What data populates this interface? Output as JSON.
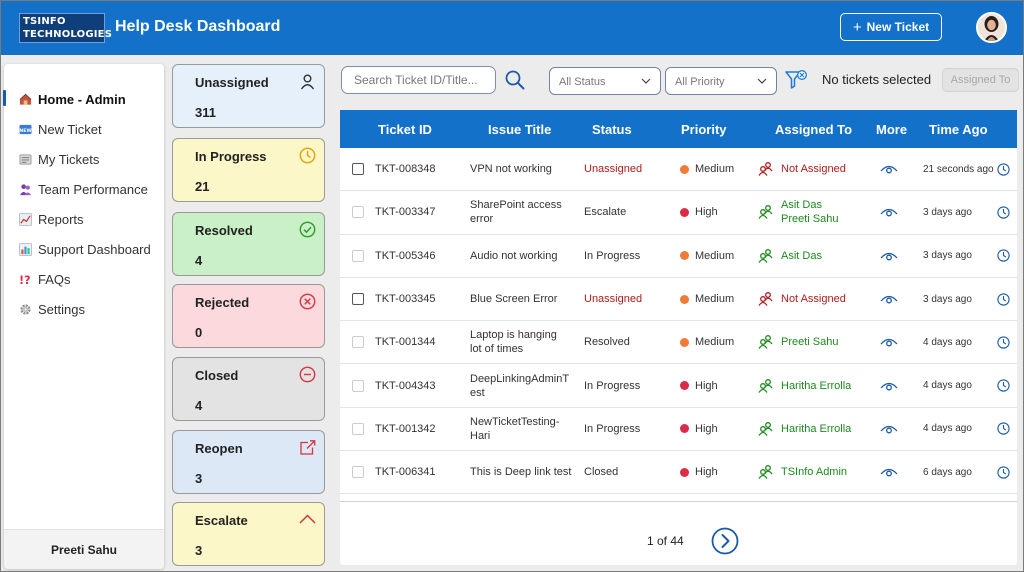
{
  "header": {
    "logo_line1": "TSINFO",
    "logo_line2": "TECHNOLOGIES",
    "title": "Help Desk Dashboard",
    "new_ticket_label": "New Ticket"
  },
  "sidebar": {
    "items": [
      {
        "label": "Home - Admin",
        "icon": "home-icon"
      },
      {
        "label": "New Ticket",
        "icon": "new-badge-icon"
      },
      {
        "label": "My Tickets",
        "icon": "tickets-icon"
      },
      {
        "label": "Team Performance",
        "icon": "team-icon"
      },
      {
        "label": "Reports",
        "icon": "chart-line-icon"
      },
      {
        "label": "Support Dashboard",
        "icon": "bar-chart-icon"
      },
      {
        "label": "FAQs",
        "icon": "question-exclamation-icon"
      },
      {
        "label": "Settings",
        "icon": "gear-icon"
      }
    ],
    "user_name": "Preeti Sahu"
  },
  "status_cards": [
    {
      "title": "Unassigned",
      "count": "311",
      "icon": "user-icon",
      "bg": "#e6f0fb",
      "color": "#333333"
    },
    {
      "title": "In Progress",
      "count": "21",
      "icon": "clock-icon",
      "bg": "#fbf7c8",
      "color": "#e6a100"
    },
    {
      "title": "Resolved",
      "count": "4",
      "icon": "check-circle-icon",
      "bg": "#c9f0c6",
      "color": "#2e9a2e"
    },
    {
      "title": "Rejected",
      "count": "0",
      "icon": "x-circle-icon",
      "bg": "#fbd9dc",
      "color": "#d9333f"
    },
    {
      "title": "Closed",
      "count": "4",
      "icon": "minus-circle-icon",
      "bg": "#e3e3e3",
      "color": "#d9333f"
    },
    {
      "title": "Reopen",
      "count": "3",
      "icon": "external-link-icon",
      "bg": "#dde8f7",
      "color": "#d9333f"
    },
    {
      "title": "Escalate",
      "count": "3",
      "icon": "chevron-up-icon",
      "bg": "#fbf7c8",
      "color": "#d9333f"
    }
  ],
  "toolbar": {
    "search_placeholder": "Search Ticket ID/Title...",
    "status_filter": "All Status",
    "priority_filter": "All Priority",
    "selection_text": "No tickets selected",
    "assign_label": "Assigned To"
  },
  "table": {
    "columns": [
      "Ticket ID",
      "Issue Title",
      "Status",
      "Priority",
      "Assigned To",
      "More",
      "Time Ago"
    ],
    "rows": [
      {
        "id": "TKT-008348",
        "title": [
          "VPN not working"
        ],
        "status": "Unassigned",
        "priority": "Medium",
        "assigned": [
          "Not Assigned"
        ],
        "time": "21 seconds ago"
      },
      {
        "id": "TKT-003347",
        "title": [
          "SharePoint access",
          "error"
        ],
        "status": "Escalate",
        "priority": "High",
        "assigned": [
          "Asit Das",
          "Preeti Sahu"
        ],
        "time": "3 days ago"
      },
      {
        "id": "TKT-005346",
        "title": [
          "Audio not working"
        ],
        "status": "In Progress",
        "priority": "Medium",
        "assigned": [
          "Asit Das"
        ],
        "time": "3 days ago"
      },
      {
        "id": "TKT-003345",
        "title": [
          "Blue Screen Error"
        ],
        "status": "Unassigned",
        "priority": "Medium",
        "assigned": [
          "Not Assigned"
        ],
        "time": "3 days ago"
      },
      {
        "id": "TKT-001344",
        "title": [
          "Laptop is hanging",
          "lot of times"
        ],
        "status": "Resolved",
        "priority": "Medium",
        "assigned": [
          "Preeti Sahu"
        ],
        "time": "4 days ago"
      },
      {
        "id": "TKT-004343",
        "title": [
          "DeepLinkingAdminT",
          "est"
        ],
        "status": "In Progress",
        "priority": "High",
        "assigned": [
          "Haritha Errolla"
        ],
        "time": "4 days ago"
      },
      {
        "id": "TKT-001342",
        "title": [
          "NewTicketTesting-",
          "Hari"
        ],
        "status": "In Progress",
        "priority": "High",
        "assigned": [
          "Haritha Errolla"
        ],
        "time": "4 days ago"
      },
      {
        "id": "TKT-006341",
        "title": [
          "This is Deep link test"
        ],
        "status": "Closed",
        "priority": "High",
        "assigned": [
          "TSInfo Admin"
        ],
        "time": "6 days ago"
      }
    ]
  },
  "pagination": {
    "text": "1 of 44"
  },
  "colors": {
    "brand": "#1471c9",
    "medium": "#f07b38",
    "high": "#d92c48",
    "assigned_green": "#1e8a1e",
    "unassigned_red": "#b01c1c"
  }
}
